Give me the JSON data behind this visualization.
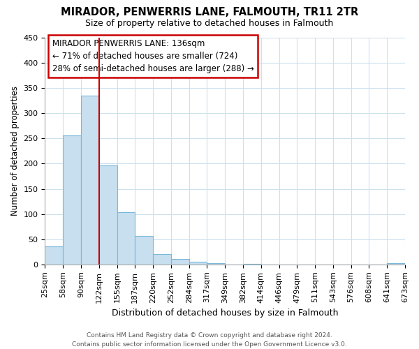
{
  "title": "MIRADOR, PENWERRIS LANE, FALMOUTH, TR11 2TR",
  "subtitle": "Size of property relative to detached houses in Falmouth",
  "xlabel": "Distribution of detached houses by size in Falmouth",
  "ylabel": "Number of detached properties",
  "bar_values": [
    36,
    256,
    335,
    197,
    104,
    57,
    21,
    11,
    5,
    2,
    0,
    1,
    0,
    0,
    0,
    0,
    0,
    0,
    0,
    2
  ],
  "bar_labels": [
    "25sqm",
    "58sqm",
    "90sqm",
    "122sqm",
    "155sqm",
    "187sqm",
    "220sqm",
    "252sqm",
    "284sqm",
    "317sqm",
    "349sqm",
    "382sqm",
    "414sqm",
    "446sqm",
    "479sqm",
    "511sqm",
    "543sqm",
    "576sqm",
    "608sqm",
    "641sqm",
    "673sqm"
  ],
  "bar_color": "#c8dff0",
  "bar_edge_color": "#7ab8d8",
  "ylim": [
    0,
    450
  ],
  "yticks": [
    0,
    50,
    100,
    150,
    200,
    250,
    300,
    350,
    400,
    450
  ],
  "property_line_x": 3,
  "property_line_color": "#cc0000",
  "annotation_title": "MIRADOR PENWERRIS LANE: 136sqm",
  "annotation_line1": "← 71% of detached houses are smaller (724)",
  "annotation_line2": "28% of semi-detached houses are larger (288) →",
  "footer_line1": "Contains HM Land Registry data © Crown copyright and database right 2024.",
  "footer_line2": "Contains public sector information licensed under the Open Government Licence v3.0.",
  "background_color": "#ffffff",
  "grid_color": "#cce0ee"
}
